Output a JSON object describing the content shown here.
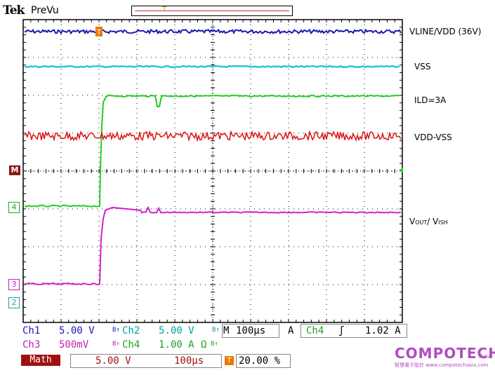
{
  "header": {
    "brand": "Tek",
    "mode": "PreVu"
  },
  "trace_labels": {
    "vline": "VLINE/VDD (36V)",
    "vss": "VSS",
    "ild": "ILD=3A",
    "vdd_vss": "VDD-VSS",
    "vout_main": "V",
    "vout_sub": "OUT",
    "vout_sep": "/ V",
    "vish_sub": "ISH"
  },
  "markers": {
    "math": "M",
    "ch4": "4",
    "ch3": "3",
    "ch2": "2",
    "trigger": "T"
  },
  "channels": [
    {
      "name": "Ch1",
      "scale": "5.00 V",
      "color": "#1a1ab0"
    },
    {
      "name": "Ch2",
      "scale": "5.00 V",
      "color": "#00a0a0"
    },
    {
      "name": "Ch3",
      "scale": "500mV",
      "color": "#c020b0"
    },
    {
      "name": "Ch4",
      "scale": "1.00 A",
      "color": "#20a020"
    }
  ],
  "bw_symbol": "B↑",
  "ohm_symbol": "Ω",
  "timebase": {
    "label": "M",
    "value": "100µs",
    "mode": "A"
  },
  "trigger": {
    "source": "Ch4",
    "slope": "ʃ",
    "level": "1.02 A",
    "position": "20.00 %"
  },
  "math": {
    "label": "Math",
    "scale": "5.00 V",
    "time": "100µs"
  },
  "logo": {
    "main": "COMPOTECH",
    "asia": "Asia",
    "sub": "智慧電子設計 www.compotechasia.com"
  },
  "colors": {
    "ch1": "#1a1ab0",
    "ch2": "#22c8e0",
    "ch3": "#d020d0",
    "ch4": "#22cc22",
    "ch_extra": "#dd1111",
    "grid": "#000000"
  }
}
